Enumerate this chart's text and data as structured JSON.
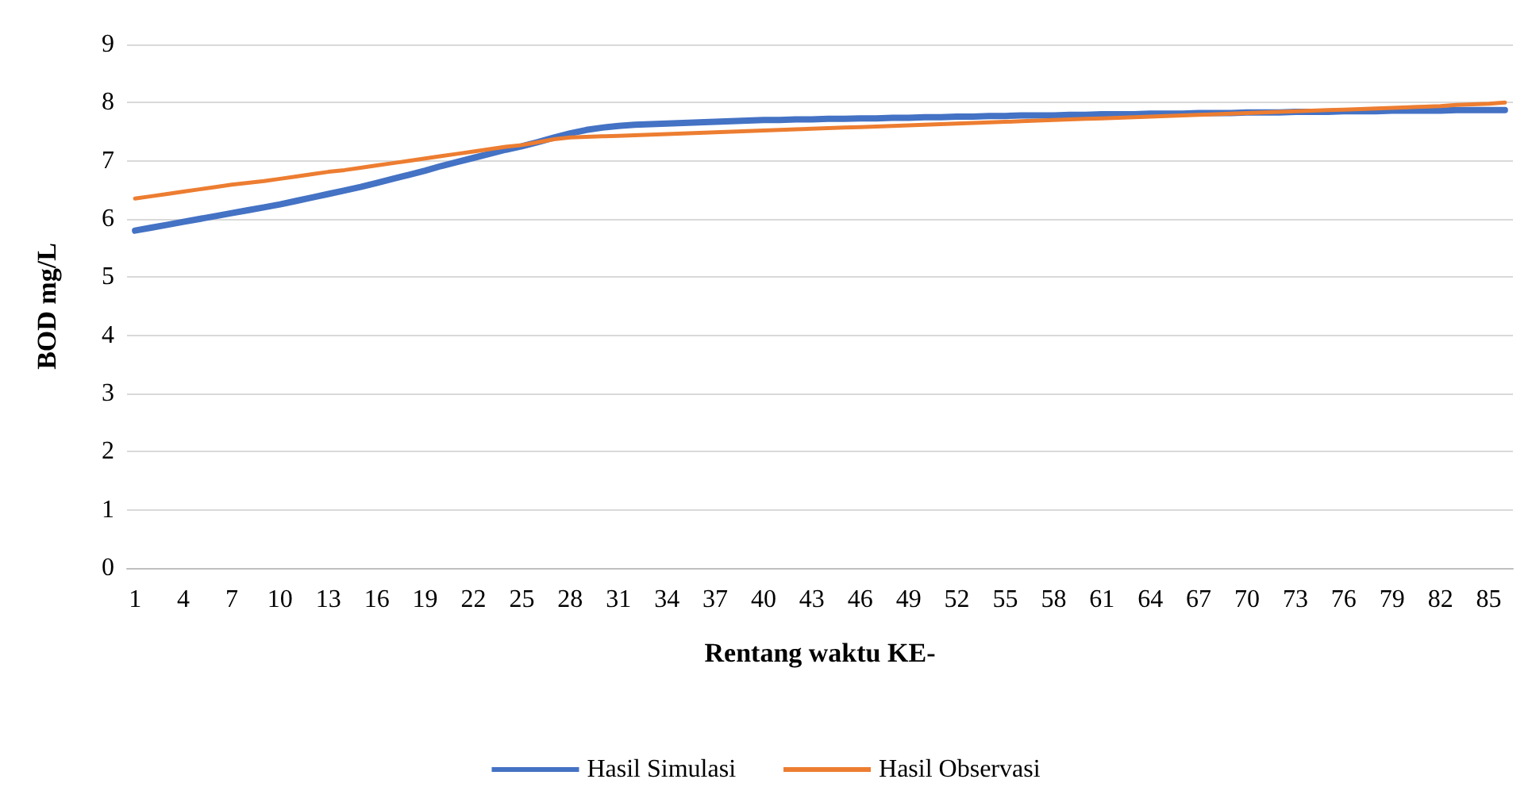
{
  "chart_data": {
    "type": "line",
    "xlabel": "Rentang waktu KE-",
    "ylabel": "BOD mg/L",
    "categories": [
      "1",
      null,
      null,
      "4",
      null,
      null,
      "7",
      null,
      null,
      "10",
      null,
      null,
      "13",
      null,
      null,
      "16",
      null,
      null,
      "19",
      null,
      null,
      "22",
      null,
      null,
      "25",
      null,
      null,
      "28",
      null,
      null,
      "31",
      null,
      null,
      "34",
      null,
      null,
      "37",
      null,
      null,
      "40",
      null,
      null,
      "43",
      null,
      null,
      "46",
      null,
      null,
      "49",
      null,
      null,
      "52",
      null,
      null,
      "55",
      null,
      null,
      "58",
      null,
      null,
      "61",
      null,
      null,
      "64",
      null,
      null,
      "67",
      null,
      null,
      "70",
      null,
      null,
      "73",
      null,
      null,
      "76",
      null,
      null,
      "79",
      null,
      null,
      "82",
      null,
      null,
      "85",
      null
    ],
    "series": [
      {
        "name": "Hasil Simulasi",
        "color": "#4472c4",
        "values": [
          5.8,
          5.85,
          5.9,
          5.95,
          6.0,
          6.05,
          6.1,
          6.15,
          6.2,
          6.25,
          6.31,
          6.37,
          6.43,
          6.49,
          6.55,
          6.62,
          6.69,
          6.76,
          6.83,
          6.91,
          6.98,
          7.05,
          7.12,
          7.19,
          7.25,
          7.32,
          7.4,
          7.47,
          7.53,
          7.57,
          7.6,
          7.62,
          7.63,
          7.64,
          7.65,
          7.66,
          7.67,
          7.68,
          7.69,
          7.7,
          7.7,
          7.71,
          7.71,
          7.72,
          7.72,
          7.73,
          7.73,
          7.74,
          7.74,
          7.75,
          7.75,
          7.76,
          7.76,
          7.77,
          7.77,
          7.78,
          7.78,
          7.78,
          7.79,
          7.79,
          7.8,
          7.8,
          7.8,
          7.81,
          7.81,
          7.81,
          7.82,
          7.82,
          7.82,
          7.83,
          7.83,
          7.83,
          7.84,
          7.84,
          7.84,
          7.85,
          7.85,
          7.85,
          7.86,
          7.86,
          7.86,
          7.86,
          7.87,
          7.87,
          7.87,
          7.87
        ]
      },
      {
        "name": "Hasil Observasi",
        "color": "#ed7d31",
        "values": [
          6.35,
          6.39,
          6.43,
          6.47,
          6.51,
          6.55,
          6.59,
          6.62,
          6.65,
          6.69,
          6.73,
          6.77,
          6.81,
          6.84,
          6.88,
          6.92,
          6.96,
          7.0,
          7.04,
          7.08,
          7.12,
          7.16,
          7.2,
          7.24,
          7.27,
          7.32,
          7.37,
          7.4,
          7.41,
          7.42,
          7.43,
          7.44,
          7.45,
          7.46,
          7.47,
          7.48,
          7.49,
          7.5,
          7.51,
          7.52,
          7.53,
          7.54,
          7.55,
          7.56,
          7.57,
          7.58,
          7.59,
          7.6,
          7.61,
          7.62,
          7.63,
          7.64,
          7.65,
          7.66,
          7.67,
          7.68,
          7.69,
          7.7,
          7.71,
          7.72,
          7.73,
          7.74,
          7.75,
          7.76,
          7.77,
          7.78,
          7.79,
          7.8,
          7.81,
          7.82,
          7.83,
          7.84,
          7.85,
          7.86,
          7.87,
          7.88,
          7.89,
          7.9,
          7.91,
          7.92,
          7.93,
          7.94,
          7.96,
          7.97,
          7.98,
          8.0
        ]
      }
    ],
    "ylim": [
      0,
      9
    ],
    "yticks": [
      0,
      1,
      2,
      3,
      4,
      5,
      6,
      7,
      8,
      9
    ],
    "grid": "y",
    "legend": "bottom",
    "marker": "none",
    "line_style": "solid"
  }
}
